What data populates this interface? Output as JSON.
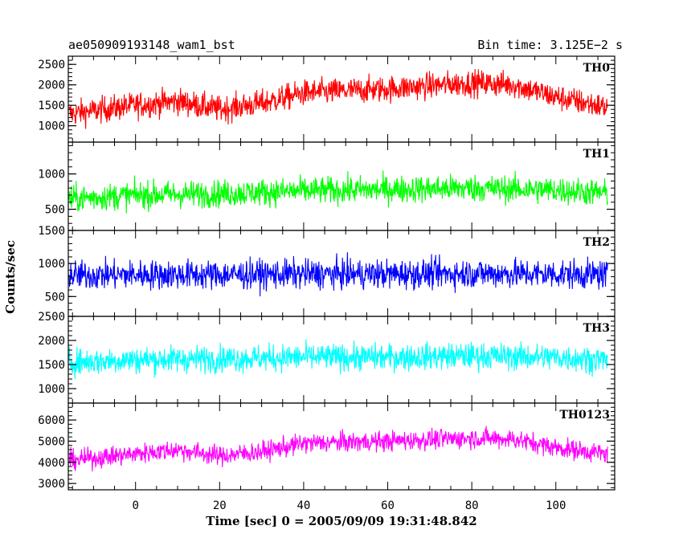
{
  "header": {
    "left_title": "ae050909193148_wam1_bst",
    "right_title": "Bin time: 3.125E−2 s"
  },
  "chart_data": {
    "type": "line",
    "xlabel": "Time [sec] 0 = 2005/09/09 19:31:48.842",
    "ylabel": "Counts/sec",
    "xlim": [
      -16,
      114
    ],
    "x_ticks": [
      0,
      20,
      40,
      60,
      80,
      100
    ],
    "x_tick_labels": [
      "0",
      "20",
      "40",
      "60",
      "80",
      "100"
    ],
    "panels": [
      {
        "name": "TH0",
        "color": "#ff0000",
        "ylim": [
          600,
          2700
        ],
        "y_ticks": [
          1000,
          1500,
          2000,
          2500
        ],
        "y_tick_labels": [
          "1000",
          "1500",
          "2000",
          "2500"
        ],
        "profile": {
          "x": [
            -15,
            0,
            10,
            20,
            30,
            40,
            60,
            80,
            90,
            100,
            112
          ],
          "y": [
            1300,
            1500,
            1600,
            1400,
            1550,
            1800,
            1900,
            2050,
            2000,
            1700,
            1450
          ]
        },
        "spread": 750
      },
      {
        "name": "TH1",
        "color": "#00ff00",
        "ylim": [
          200,
          1450
        ],
        "y_ticks": [
          500,
          1000
        ],
        "y_tick_labels": [
          "500",
          "1000"
        ],
        "profile": {
          "x": [
            -15,
            0,
            20,
            40,
            60,
            80,
            100,
            112
          ],
          "y": [
            650,
            700,
            720,
            760,
            780,
            800,
            770,
            730
          ]
        },
        "spread": 450
      },
      {
        "name": "TH2",
        "color": "#0000ff",
        "ylim": [
          200,
          1500
        ],
        "y_ticks": [
          500,
          1000,
          1500
        ],
        "y_tick_labels": [
          "500",
          "1000",
          "1500"
        ],
        "profile": {
          "x": [
            -15,
            0,
            20,
            40,
            60,
            80,
            100,
            112
          ],
          "y": [
            820,
            830,
            830,
            840,
            840,
            850,
            840,
            830
          ]
        },
        "spread": 520
      },
      {
        "name": "TH3",
        "color": "#00ffff",
        "ylim": [
          700,
          2500
        ],
        "y_ticks": [
          1000,
          1500,
          2000,
          2500
        ],
        "y_tick_labels": [
          "1000",
          "1500",
          "2000",
          "2500"
        ],
        "profile": {
          "x": [
            -15,
            0,
            20,
            40,
            60,
            80,
            100,
            112
          ],
          "y": [
            1550,
            1600,
            1620,
            1650,
            1650,
            1680,
            1650,
            1600
          ]
        },
        "spread": 650
      },
      {
        "name": "TH0123",
        "color": "#ff00ff",
        "ylim": [
          2700,
          6800
        ],
        "y_ticks": [
          3000,
          4000,
          5000,
          6000
        ],
        "y_tick_labels": [
          "3000",
          "4000",
          "5000",
          "6000"
        ],
        "profile": {
          "x": [
            -15,
            0,
            10,
            20,
            30,
            40,
            60,
            80,
            90,
            100,
            112
          ],
          "y": [
            4100,
            4400,
            4600,
            4300,
            4500,
            4900,
            5000,
            5150,
            5100,
            4700,
            4400
          ]
        },
        "spread": 1100
      }
    ]
  }
}
